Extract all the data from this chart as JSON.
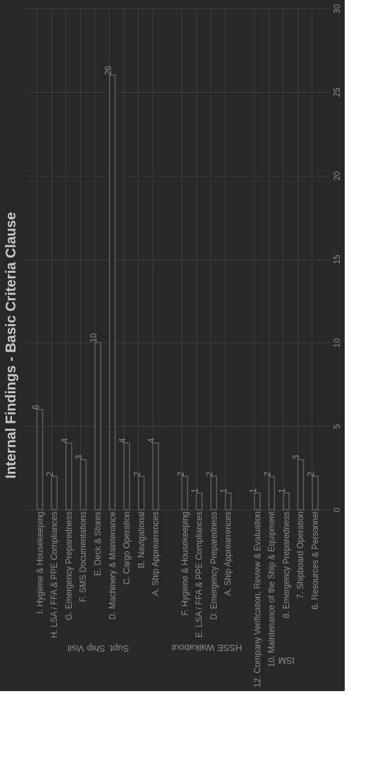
{
  "chart_data": [
    {
      "type": "bar",
      "title": "Internal Findings - Basic Criteria Clause",
      "xlabel": "Supt. Ship Visit",
      "categories": [
        "I. Hygiene & Housekeeping",
        "H. LSA / FFA & PPE Compliances",
        "G. Emergency Preparedness",
        "F. SMS Documentations",
        "E. Deck & Stores",
        "D. Machinery & Maintenance",
        "C. Cargo Operation",
        "B. Navigational",
        "A. Ship Apprearrences"
      ],
      "values": [
        6,
        2,
        4,
        3,
        10,
        26,
        4,
        2,
        4
      ],
      "color": "#5e5e5e",
      "ylim": [
        0,
        30
      ],
      "yticks": [
        0,
        5,
        10,
        15,
        20,
        25,
        30
      ],
      "grid": true,
      "data_labels": true,
      "tick_labels": "x"
    },
    {
      "type": "bar",
      "xlabel": "HSSE Walkabout",
      "categories": [
        "F. Hygiene & Housekeeping",
        "E. LSA / FFA & PPE Compliances",
        "D. Emergency Preparedness",
        "A. Ship Apprearrences"
      ],
      "values": [
        2,
        1,
        2,
        1
      ],
      "color": "#5e5e5e",
      "ylim": [
        0,
        30
      ],
      "yticks": [
        0,
        5,
        10,
        15,
        20,
        25,
        30
      ],
      "grid": true,
      "data_labels": true,
      "tick_labels": "x"
    },
    {
      "type": "bar",
      "xlabel": "ISM",
      "categories": [
        "12. Company Verification, Review & Evaluation",
        "10. Maintenance of the Ship & Equipment",
        "8. Emergency Preparedness",
        "7. Shipboard Operation",
        "6. Resources & Personnel"
      ],
      "values": [
        1,
        2,
        1,
        3,
        2
      ],
      "color": "#5e5e5e",
      "ylim": [
        0,
        30
      ],
      "yticks": [
        0,
        5,
        10,
        15,
        20,
        25,
        30
      ],
      "grid": true,
      "data_labels": true
    }
  ]
}
